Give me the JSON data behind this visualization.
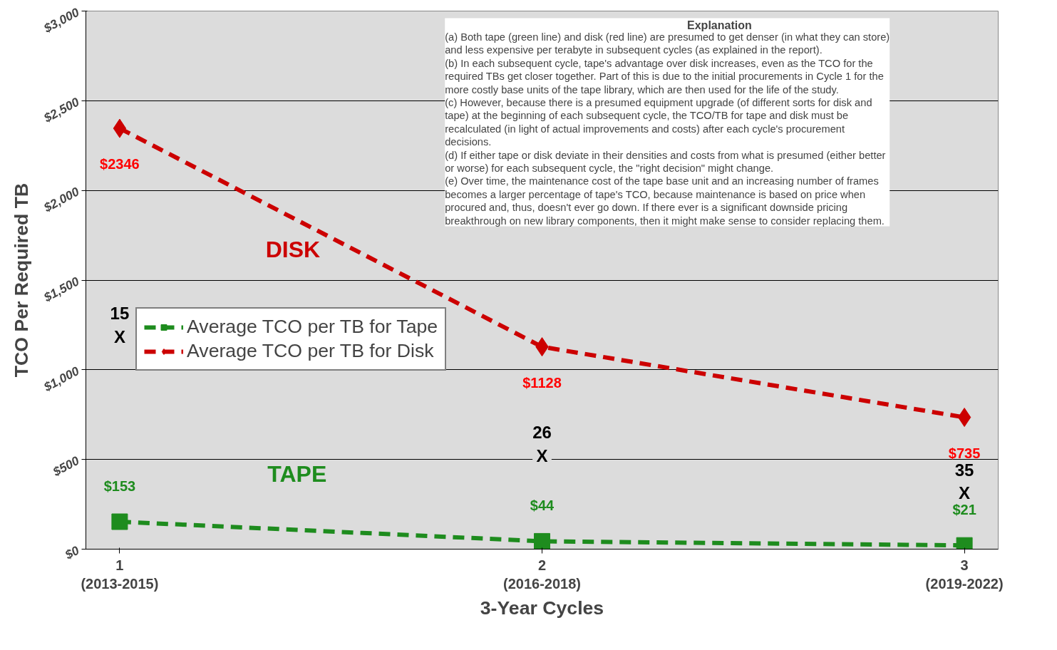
{
  "chart_data": {
    "type": "line",
    "xlabel": "3-Year Cycles",
    "ylabel": "TCO Per Required TB",
    "categories": [
      "1\n(2013-2015)",
      "2\n(2016-2018)",
      "3\n(2019-2022)"
    ],
    "series": [
      {
        "name": "Average TCO per TB for Tape",
        "color": "#1e8c1e",
        "marker": "square",
        "values": [
          153,
          44,
          21
        ],
        "value_labels": [
          "$153",
          "$44",
          "$21"
        ]
      },
      {
        "name": "Average TCO per TB for Disk",
        "color": "#cc0000",
        "marker": "diamond",
        "values": [
          2346,
          1128,
          735
        ],
        "value_labels": [
          "$2346",
          "$1128",
          "$735"
        ]
      }
    ],
    "ylim": [
      0,
      3000
    ],
    "yticks": [
      {
        "value": 0,
        "label": "$0"
      },
      {
        "value": 500,
        "label": "$500"
      },
      {
        "value": 1000,
        "label": "$1,000"
      },
      {
        "value": 1500,
        "label": "$1,500"
      },
      {
        "value": 2000,
        "label": "$2,000"
      },
      {
        "value": 2500,
        "label": "$2,500"
      },
      {
        "value": 3000,
        "label": "$3,000"
      }
    ],
    "grid": "y",
    "legend": "left",
    "line_style": "dashed",
    "annotations": [
      "DISK",
      "TAPE",
      "15\nX",
      "26\nX",
      "35\nX",
      "Explanation",
      "(a) Both tape (green line) and disk (red line) are presumed to get denser (in what they can store)\nand less expensive per terabyte in subsequent cycles (as explained in the report).\n(b) In each subsequent cycle, tape's advantage over disk increases, even as the TCO for the\nrequired TBs get closer together.  Part of this is due to the initial procurements in Cycle 1 for the\nmore costly base units of the tape library, which are then used for the life of the study.\n(c) However, because there is a presumed equipment upgrade (of different sorts for disk and\ntape) at the beginning of each subsequent cycle, the TCO/TB for tape and disk must be\nrecalculated (in light of actual improvements and costs) after each cycle's procurement\ndecisions.\n(d) If either tape or disk deviate in their densities and costs from what is presumed (either better\nor worse) for each subsequent cycle, the \"right decision\" might change.\n(e) Over time, the maintenance cost of the tape base unit and an increasing number of frames\nbecomes a larger percentage of tape's TCO, because maintenance is based on price when\nprocured and, thus, doesn't ever go down.  If there ever is a significant downside pricing\nbreakthrough on new library components, then it might make sense to consider replacing them."
    ]
  }
}
